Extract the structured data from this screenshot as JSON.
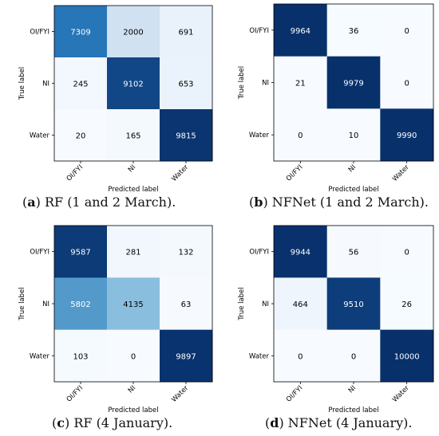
{
  "chart_data": [
    {
      "type": "heatmap",
      "caption_letter": "a",
      "caption_text": "RF (1 and 2 March).",
      "row_labels": [
        "OI/FYI",
        "NI",
        "Water"
      ],
      "col_labels": [
        "OI/FYI",
        "NI",
        "Water"
      ],
      "xlabel": "Predicted label",
      "ylabel": "True label",
      "matrix": [
        [
          7309,
          2000,
          691
        ],
        [
          245,
          9102,
          653
        ],
        [
          20,
          165,
          9815
        ]
      ],
      "vmax": 10000
    },
    {
      "type": "heatmap",
      "caption_letter": "b",
      "caption_text": "NFNet (1 and 2 March).",
      "row_labels": [
        "OI/FYI",
        "NI",
        "Water"
      ],
      "col_labels": [
        "OI/FYI",
        "NI",
        "Water"
      ],
      "xlabel": "Predicted label",
      "ylabel": "True label",
      "matrix": [
        [
          9964,
          36,
          0
        ],
        [
          21,
          9979,
          0
        ],
        [
          0,
          10,
          9990
        ]
      ],
      "vmax": 10000
    },
    {
      "type": "heatmap",
      "caption_letter": "c",
      "caption_text": "RF (4 January).",
      "row_labels": [
        "OI/FYI",
        "NI",
        "Water"
      ],
      "col_labels": [
        "OI/FYI",
        "NI",
        "Water"
      ],
      "xlabel": "Predicted label",
      "ylabel": "True label",
      "matrix": [
        [
          9587,
          281,
          132
        ],
        [
          5802,
          4135,
          63
        ],
        [
          103,
          0,
          9897
        ]
      ],
      "vmax": 10000
    },
    {
      "type": "heatmap",
      "caption_letter": "d",
      "caption_text": "NFNet (4 January).",
      "row_labels": [
        "OI/FYI",
        "NI",
        "Water"
      ],
      "col_labels": [
        "OI/FYI",
        "NI",
        "Water"
      ],
      "xlabel": "Predicted label",
      "ylabel": "True label",
      "matrix": [
        [
          9944,
          56,
          0
        ],
        [
          464,
          9510,
          26
        ],
        [
          0,
          0,
          10000
        ]
      ],
      "vmax": 10000
    }
  ],
  "colors": {
    "low": "#f7fbff",
    "mid1": "#c6dbef",
    "mid2": "#6baed6",
    "mid3": "#2171b5",
    "high": "#08306b",
    "dark_text": "#000000",
    "light_text": "#ffffff"
  }
}
